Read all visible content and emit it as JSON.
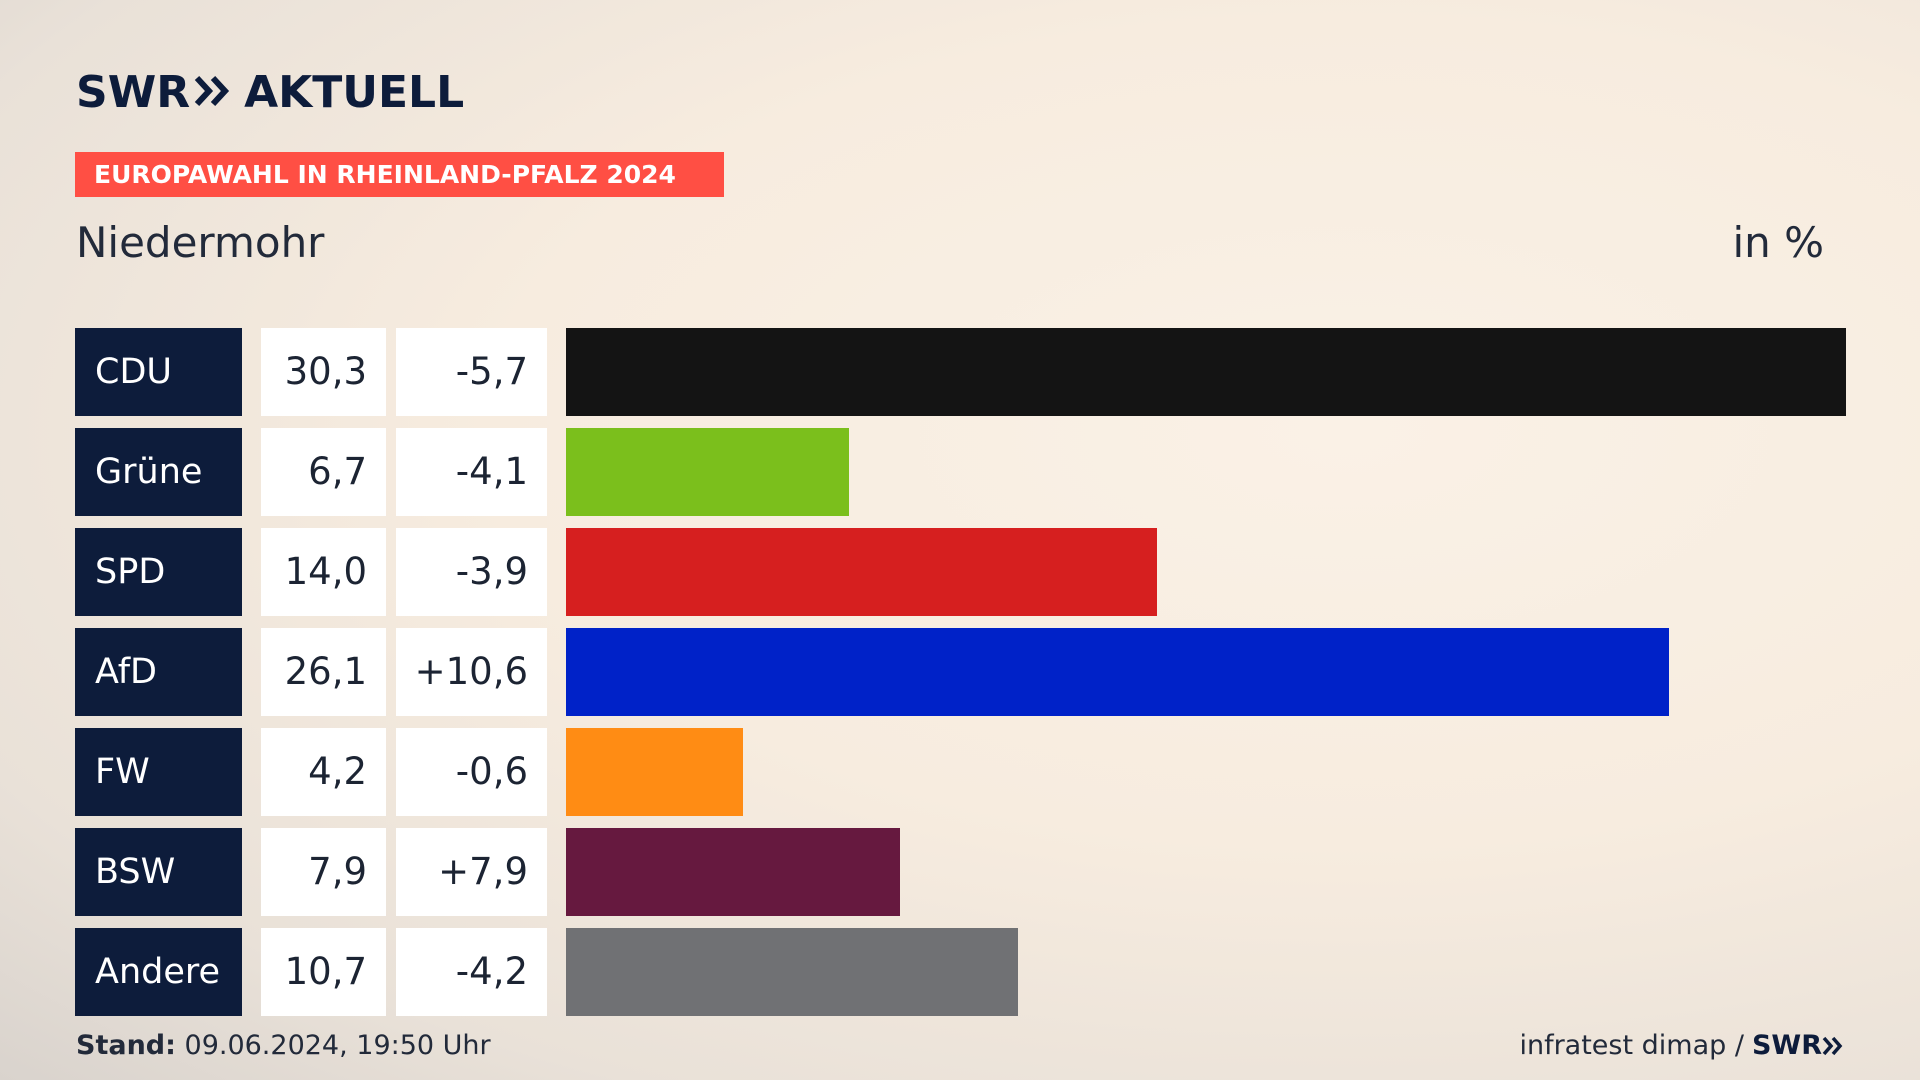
{
  "header": {
    "logo_left": "SWR",
    "logo_right": "AKTUELL",
    "banner": "EUROPAWAHL IN RHEINLAND-PFALZ 2024",
    "place": "Niedermohr",
    "unit": "in %"
  },
  "footer": {
    "stand_label": "Stand:",
    "stand_value": "09.06.2024, 19:50 Uhr",
    "source": "infratest dimap /",
    "brand": "SWR"
  },
  "colors": {
    "accent": "#ff4f44",
    "navy": "#0d1c3b"
  },
  "chart_data": {
    "type": "bar",
    "orientation": "horizontal",
    "title": "Niedermohr",
    "unit": "in %",
    "xlim": [
      0,
      30.3
    ],
    "grid": false,
    "categories": [
      "CDU",
      "Grüne",
      "SPD",
      "AfD",
      "FW",
      "BSW",
      "Andere"
    ],
    "values": [
      30.3,
      6.7,
      14.0,
      26.1,
      4.2,
      7.9,
      10.7
    ],
    "value_labels": [
      "30,3",
      "6,7",
      "14,0",
      "26,1",
      "4,2",
      "7,9",
      "10,7"
    ],
    "diff_labels": [
      "-5,7",
      "-4,1",
      "-3,9",
      "+10,6",
      "-0,6",
      "+7,9",
      "-4,2"
    ],
    "colors": [
      "#141414",
      "#7bbf1c",
      "#d61f1f",
      "#0022c8",
      "#ff8c14",
      "#66193f",
      "#707174"
    ]
  }
}
